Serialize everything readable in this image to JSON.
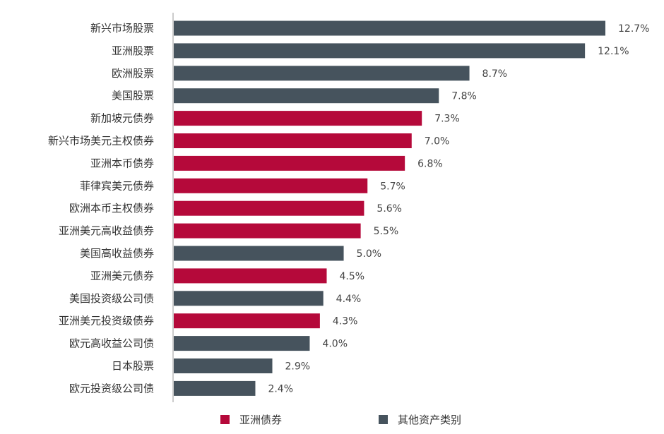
{
  "chart_data": {
    "type": "bar",
    "orientation": "horizontal",
    "categories": [
      "新兴市场股票",
      "亚洲股票",
      "欧洲股票",
      "美国股票",
      "新加坡元债券",
      "新兴市场美元主权债券",
      "亚洲本币债券",
      "菲律宾美元债券",
      "欧洲本币主权债券",
      "亚洲美元高收益债券",
      "美国高收益债券",
      "亚洲美元债券",
      "美国投资级公司债",
      "亚洲美元投资级债券",
      "欧元高收益公司债",
      "日本股票",
      "欧元投资级公司债"
    ],
    "values": [
      12.7,
      12.1,
      8.7,
      7.8,
      7.3,
      7.0,
      6.8,
      5.7,
      5.6,
      5.5,
      5.0,
      4.5,
      4.4,
      4.3,
      4.0,
      2.9,
      2.4
    ],
    "value_labels": [
      "12.7%",
      "12.1%",
      "8.7%",
      "7.8%",
      "7.3%",
      "7.0%",
      "6.8%",
      "5.7%",
      "5.6%",
      "5.5%",
      "5.0%",
      "4.5%",
      "4.4%",
      "4.3%",
      "4.0%",
      "2.9%",
      "2.4%"
    ],
    "groups": [
      "other",
      "other",
      "other",
      "other",
      "asia_bond",
      "asia_bond",
      "asia_bond",
      "asia_bond",
      "asia_bond",
      "asia_bond",
      "other",
      "asia_bond",
      "other",
      "asia_bond",
      "other",
      "other",
      "other"
    ],
    "xlim": [
      0,
      12.7
    ],
    "grid": false,
    "legend_position": "bottom",
    "title": "",
    "xlabel": "",
    "ylabel": ""
  },
  "legend": {
    "asia_bond": {
      "label": "亚洲债券",
      "color": "#B5093A"
    },
    "other": {
      "label": "其他资产类别",
      "color": "#46535D"
    }
  },
  "colors": {
    "axis": "#999999"
  }
}
